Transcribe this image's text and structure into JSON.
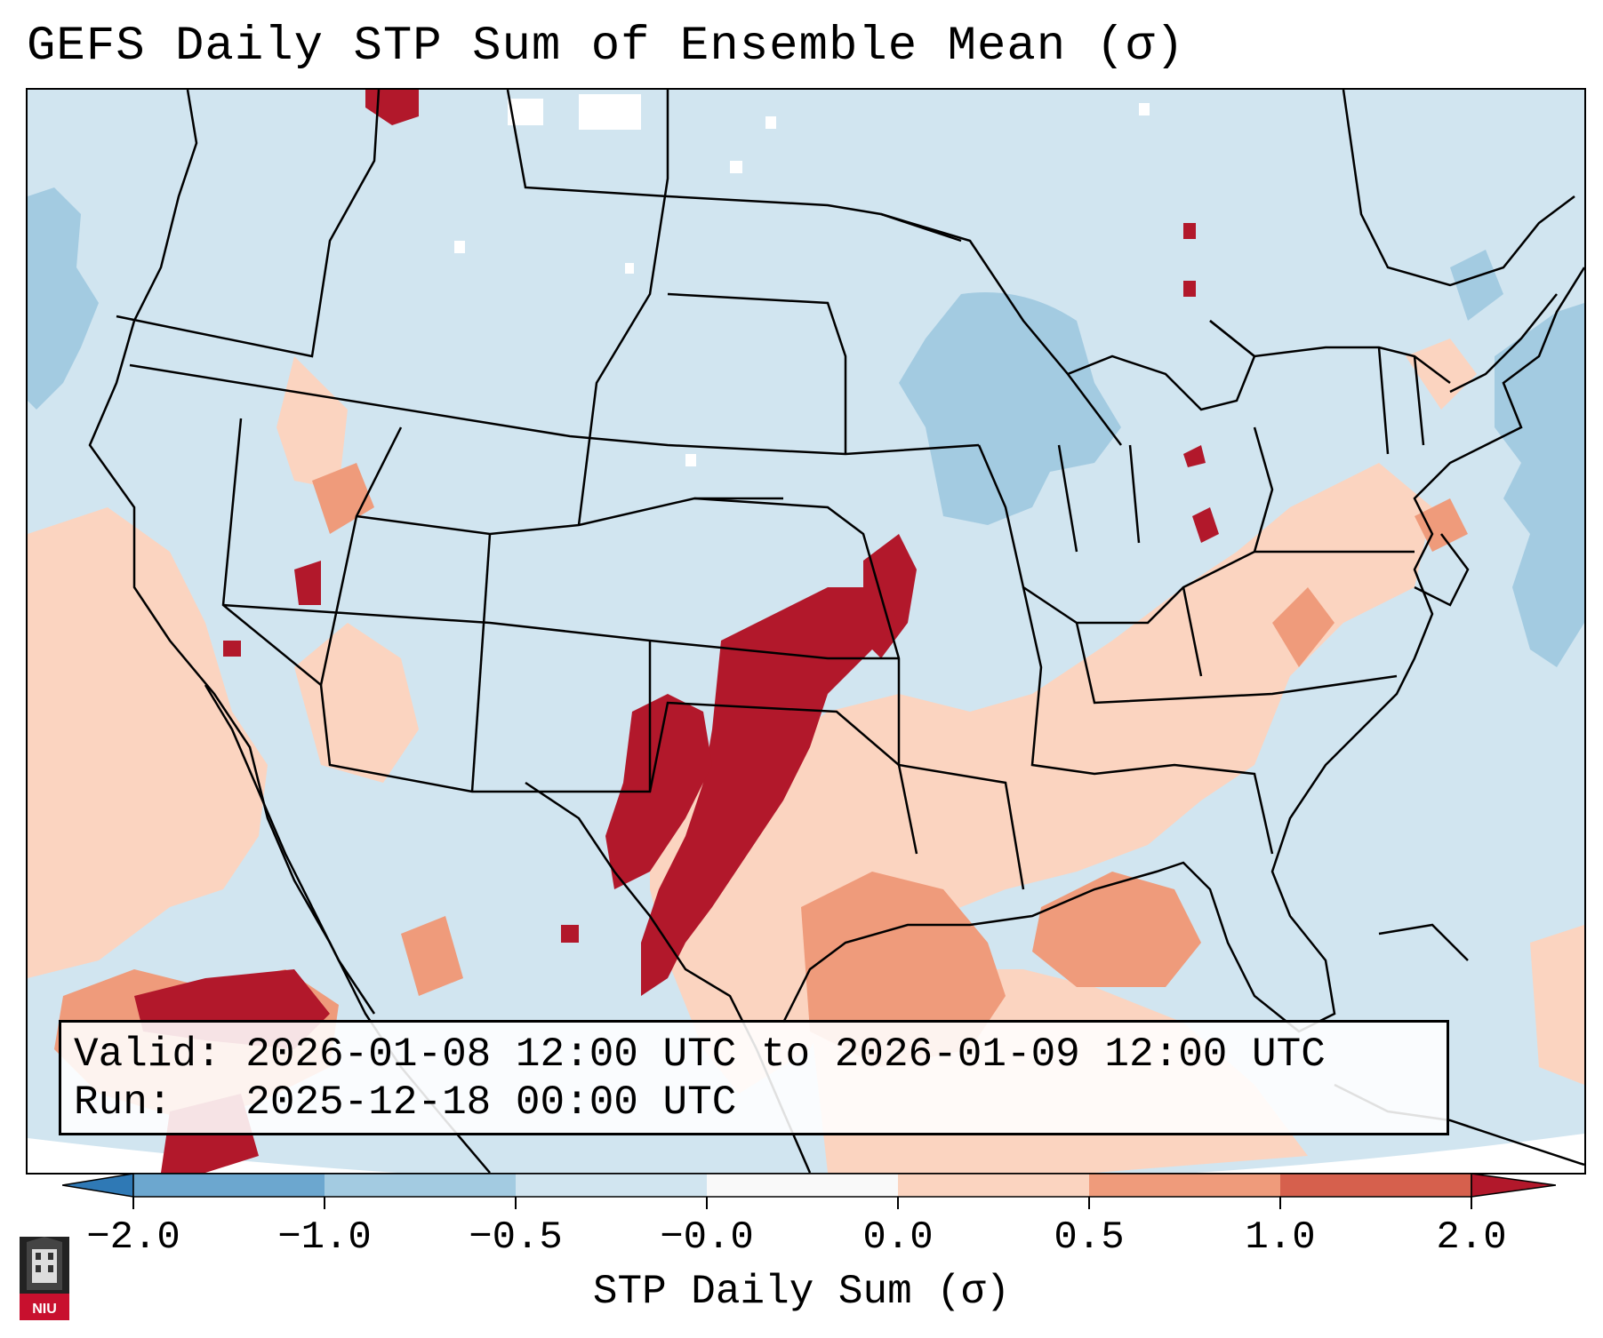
{
  "title": "GEFS Daily STP Sum of Ensemble Mean (σ)",
  "info": {
    "valid_line": "Valid: 2026-01-08 12:00 UTC to 2026-01-09 12:00 UTC",
    "run_line": "Run:   2025-12-18 00:00 UTC"
  },
  "colorbar": {
    "label": "STP Daily Sum (σ)",
    "ticks": [
      "−2.0",
      "−1.0",
      "−0.5",
      "−0.0",
      "0.0",
      "0.5",
      "1.0",
      "2.0"
    ],
    "colors": [
      "#2f79b5",
      "#6ca7cf",
      "#a3cbe1",
      "#d1e5f0",
      "#f9f9f9",
      "#fbd4c0",
      "#ef9b7b",
      "#d6604d",
      "#b2182b"
    ]
  },
  "logo": {
    "text": "NIU",
    "icon": "niu-logo-icon"
  },
  "map": {
    "region": "Continental United States",
    "background_color": "#cfe3ef",
    "land_color": "#d1e5f0"
  }
}
